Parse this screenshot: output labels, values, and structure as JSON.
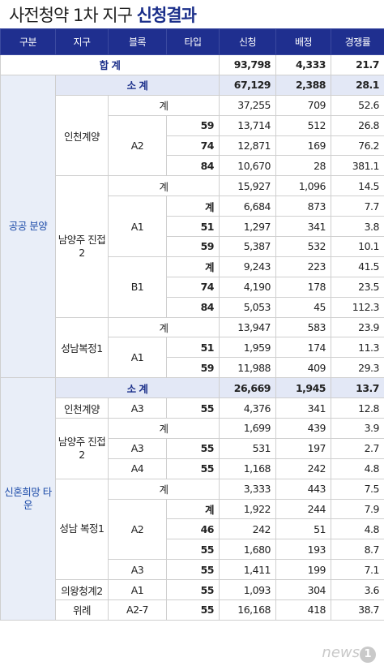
{
  "title": {
    "part1": "사전청약 1차 지구 ",
    "part2": "신청결과"
  },
  "headers": [
    "구분",
    "지구",
    "블록",
    "타입",
    "신청",
    "배정",
    "경쟁률"
  ],
  "total": {
    "label": "합 계",
    "apply": "93,798",
    "assign": "4,333",
    "ratio": "21.7"
  },
  "public": {
    "label": "공공 분양",
    "subtotal": {
      "label": "소 계",
      "apply": "67,129",
      "assign": "2,388",
      "ratio": "28.1"
    },
    "incheon": {
      "name": "인천계양",
      "sum_label": "계",
      "sum": [
        "37,255",
        "709",
        "52.6"
      ],
      "block": "A2",
      "rows": [
        [
          "59",
          "13,714",
          "512",
          "26.8"
        ],
        [
          "74",
          "12,871",
          "169",
          "76.2"
        ],
        [
          "84",
          "10,670",
          "28",
          "381.1"
        ]
      ]
    },
    "namyang": {
      "name": "남양주 진접2",
      "sum_label": "계",
      "sum": [
        "15,927",
        "1,096",
        "14.5"
      ],
      "a1": {
        "block": "A1",
        "rows": [
          [
            "계",
            "6,684",
            "873",
            "7.7"
          ],
          [
            "51",
            "1,297",
            "341",
            "3.8"
          ],
          [
            "59",
            "5,387",
            "532",
            "10.1"
          ]
        ]
      },
      "b1": {
        "block": "B1",
        "rows": [
          [
            "계",
            "9,243",
            "223",
            "41.5"
          ],
          [
            "74",
            "4,190",
            "178",
            "23.5"
          ],
          [
            "84",
            "5,053",
            "45",
            "112.3"
          ]
        ]
      }
    },
    "seongnam": {
      "name": "성남복정1",
      "sum_label": "계",
      "sum": [
        "13,947",
        "583",
        "23.9"
      ],
      "block": "A1",
      "rows": [
        [
          "51",
          "1,959",
          "174",
          "11.3"
        ],
        [
          "59",
          "11,988",
          "409",
          "29.3"
        ]
      ]
    }
  },
  "newlywed": {
    "label": "신혼희망 타운",
    "subtotal": {
      "label": "소 계",
      "apply": "26,669",
      "assign": "1,945",
      "ratio": "13.7"
    },
    "incheon": {
      "name": "인천계양",
      "block": "A3",
      "type": "55",
      "apply": "4,376",
      "assign": "341",
      "ratio": "12.8"
    },
    "namyang": {
      "name": "남양주 진접2",
      "sum_label": "계",
      "sum": [
        "1,699",
        "439",
        "3.9"
      ],
      "rows": [
        [
          "A3",
          "55",
          "531",
          "197",
          "2.7"
        ],
        [
          "A4",
          "55",
          "1,168",
          "242",
          "4.8"
        ]
      ]
    },
    "seongnam": {
      "name": "성남 복정1",
      "sum_label": "계",
      "sum": [
        "3,333",
        "443",
        "7.5"
      ],
      "block_a2": "A2",
      "a2rows": [
        [
          "계",
          "1,922",
          "244",
          "7.9"
        ],
        [
          "46",
          "242",
          "51",
          "4.8"
        ],
        [
          "55",
          "1,680",
          "193",
          "8.7"
        ]
      ],
      "a3": [
        "A3",
        "55",
        "1,411",
        "199",
        "7.1"
      ]
    },
    "uiwang": {
      "name": "의왕청계2",
      "block": "A1",
      "type": "55",
      "apply": "1,093",
      "assign": "304",
      "ratio": "3.6"
    },
    "wirye": {
      "name": "위례",
      "block": "A2-7",
      "type": "55",
      "apply": "16,168",
      "assign": "418",
      "ratio": "38.7"
    }
  },
  "logo": {
    "text": "news",
    "mark": "1"
  }
}
